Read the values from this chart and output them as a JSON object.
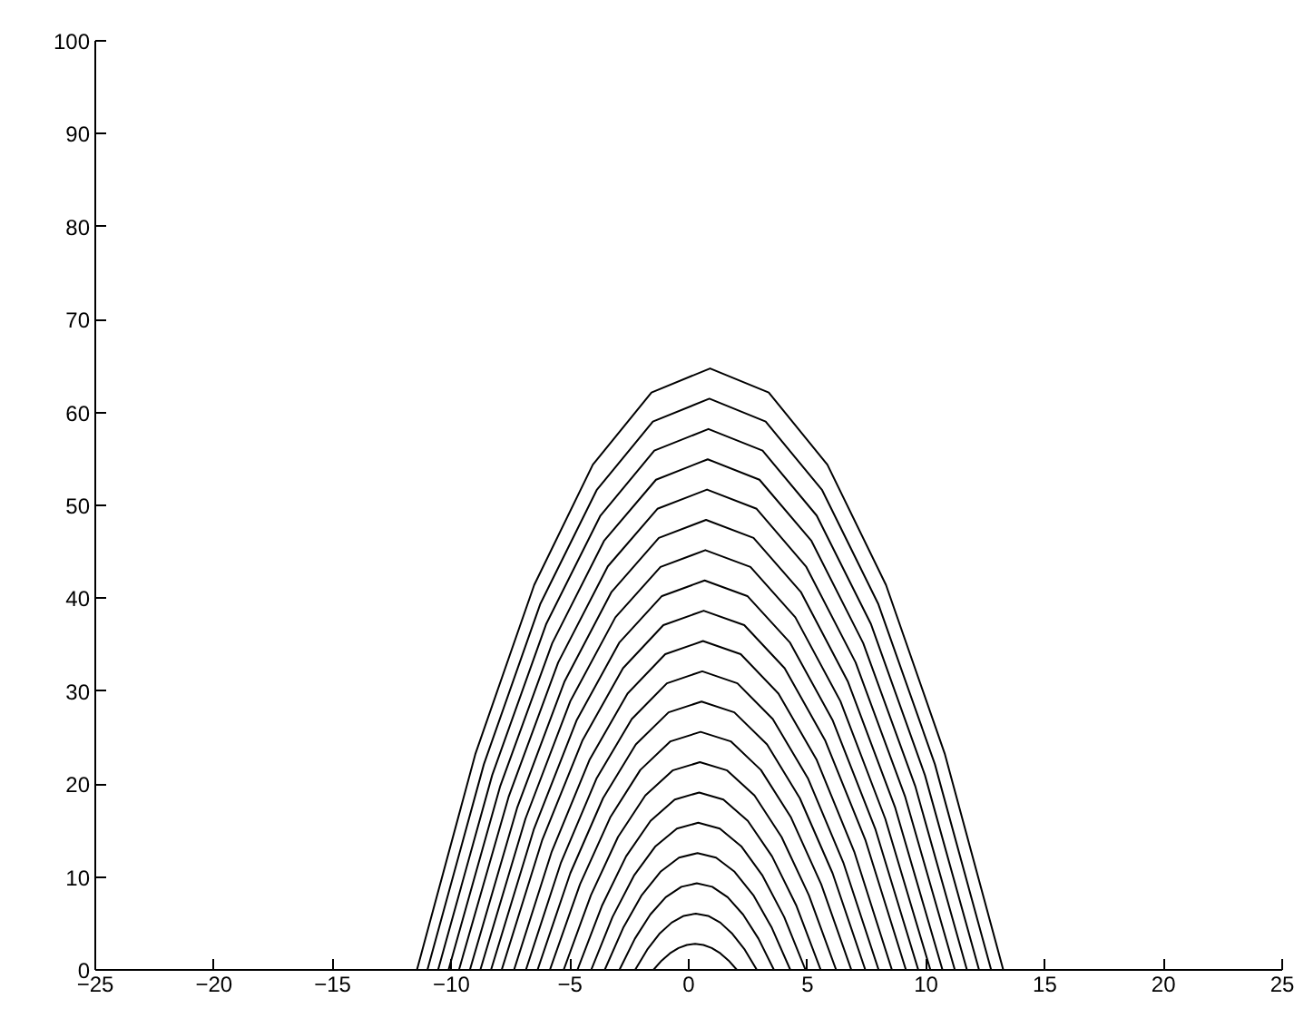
{
  "chart_data": {
    "type": "line",
    "xlim": [
      -25,
      25
    ],
    "ylim": [
      0,
      100
    ],
    "xticks": [
      -25,
      -20,
      -15,
      -10,
      -5,
      0,
      5,
      10,
      15,
      20,
      25
    ],
    "yticks": [
      0,
      10,
      20,
      30,
      40,
      50,
      60,
      70,
      80,
      90,
      100
    ],
    "grid": false,
    "marker": "none",
    "line_style": "solid",
    "series": [
      {
        "color": "#000000",
        "x": [
          -1.49,
          -1.14,
          -0.79,
          -0.43,
          -0.08,
          0.27,
          0.62,
          0.97,
          1.33,
          1.68,
          2.03
        ],
        "values": [
          0.0,
          1.01,
          1.79,
          2.35,
          2.69,
          2.8,
          2.69,
          2.35,
          1.79,
          1.01,
          0.0
        ]
      },
      {
        "color": "#000000",
        "x": [
          -2.26,
          -1.75,
          -1.24,
          -0.72,
          -0.21,
          0.3,
          0.82,
          1.33,
          1.84,
          2.36,
          2.87
        ],
        "values": [
          0.0,
          2.18,
          3.88,
          5.09,
          5.82,
          6.06,
          5.82,
          5.09,
          3.88,
          2.18,
          0.0
        ]
      },
      {
        "color": "#000000",
        "x": [
          -2.92,
          -2.27,
          -1.62,
          -0.97,
          -0.31,
          0.34,
          0.99,
          1.64,
          2.29,
          2.94,
          3.59
        ],
        "values": [
          0.0,
          3.36,
          5.96,
          7.83,
          8.95,
          9.32,
          8.95,
          7.83,
          5.96,
          3.36,
          0.0
        ]
      },
      {
        "color": "#000000",
        "x": [
          -3.54,
          -2.76,
          -1.98,
          -1.19,
          -0.41,
          0.37,
          1.15,
          1.93,
          2.72,
          3.5,
          4.28
        ],
        "values": [
          0.0,
          4.53,
          8.05,
          10.57,
          12.08,
          12.58,
          12.08,
          10.57,
          8.05,
          4.53,
          0.0
        ]
      },
      {
        "color": "#000000",
        "x": [
          -4.11,
          -3.21,
          -2.31,
          -1.4,
          -0.5,
          0.4,
          1.31,
          2.21,
          3.11,
          4.02,
          4.92
        ],
        "values": [
          0.0,
          5.7,
          10.14,
          13.31,
          15.21,
          15.84,
          15.21,
          13.31,
          10.14,
          5.7,
          0.0
        ]
      },
      {
        "color": "#000000",
        "x": [
          -4.69,
          -3.66,
          -2.64,
          -1.61,
          -0.59,
          0.44,
          1.46,
          2.49,
          3.51,
          4.54,
          5.56
        ],
        "values": [
          0.0,
          6.88,
          12.22,
          16.04,
          18.34,
          19.1,
          18.34,
          16.04,
          12.22,
          6.88,
          0.0
        ]
      },
      {
        "color": "#000000",
        "x": [
          -5.27,
          -4.12,
          -2.98,
          -1.83,
          -0.68,
          0.47,
          1.62,
          2.77,
          3.91,
          5.06,
          6.21
        ],
        "values": [
          0.0,
          8.05,
          14.31,
          18.78,
          21.47,
          22.36,
          21.47,
          18.78,
          14.31,
          8.05,
          0.0
        ]
      },
      {
        "color": "#000000",
        "x": [
          -5.85,
          -4.58,
          -3.31,
          -2.04,
          -0.77,
          0.5,
          1.77,
          3.04,
          4.31,
          5.58,
          6.85
        ],
        "values": [
          0.0,
          9.22,
          16.4,
          21.52,
          24.6,
          25.62,
          24.6,
          21.52,
          16.4,
          9.22,
          0.0
        ]
      },
      {
        "color": "#000000",
        "x": [
          -6.37,
          -4.99,
          -3.61,
          -2.23,
          -0.85,
          0.54,
          1.92,
          3.3,
          4.68,
          6.06,
          7.44
        ],
        "values": [
          0.0,
          10.4,
          18.48,
          24.26,
          27.72,
          28.88,
          27.72,
          24.26,
          18.48,
          10.4,
          0.0
        ]
      },
      {
        "color": "#000000",
        "x": [
          -6.86,
          -5.38,
          -3.89,
          -2.4,
          -0.92,
          0.57,
          2.05,
          3.54,
          5.03,
          6.51,
          8.0
        ],
        "values": [
          0.0,
          11.57,
          20.57,
          27.0,
          30.85,
          32.14,
          30.85,
          27.0,
          20.57,
          11.57,
          0.0
        ]
      },
      {
        "color": "#000000",
        "x": [
          -7.36,
          -5.77,
          -4.17,
          -2.58,
          -0.99,
          0.6,
          2.19,
          3.78,
          5.38,
          6.97,
          8.56
        ],
        "values": [
          0.0,
          12.74,
          22.66,
          29.74,
          33.98,
          35.4,
          33.98,
          29.74,
          22.66,
          12.74,
          0.0
        ]
      },
      {
        "color": "#000000",
        "x": [
          -7.88,
          -6.18,
          -4.47,
          -2.77,
          -1.07,
          0.63,
          2.34,
          4.04,
          5.74,
          7.45,
          9.15
        ],
        "values": [
          0.0,
          13.92,
          24.74,
          32.47,
          37.11,
          38.66,
          37.11,
          32.47,
          24.74,
          13.92,
          0.0
        ]
      },
      {
        "color": "#000000",
        "x": [
          -8.33,
          -6.53,
          -4.73,
          -2.93,
          -1.13,
          0.67,
          2.47,
          4.27,
          6.07,
          7.87,
          9.67
        ],
        "values": [
          0.0,
          15.09,
          26.83,
          35.21,
          40.24,
          41.92,
          40.24,
          35.21,
          26.83,
          15.09,
          0.0
        ]
      },
      {
        "color": "#000000",
        "x": [
          -8.78,
          -6.88,
          -4.99,
          -3.09,
          -1.19,
          0.7,
          2.6,
          4.49,
          6.39,
          8.28,
          10.18
        ],
        "values": [
          0.0,
          16.26,
          28.92,
          37.95,
          43.37,
          45.18,
          43.37,
          37.95,
          28.92,
          16.26,
          0.0
        ]
      },
      {
        "color": "#000000",
        "x": [
          -9.22,
          -7.23,
          -5.24,
          -3.25,
          -1.26,
          0.73,
          2.73,
          4.72,
          6.71,
          8.7,
          10.69
        ],
        "values": [
          0.0,
          17.44,
          31.0,
          40.69,
          46.5,
          48.44,
          46.5,
          40.69,
          31.0,
          17.44,
          0.0
        ]
      },
      {
        "color": "#000000",
        "x": [
          -9.68,
          -7.59,
          -5.5,
          -3.41,
          -1.32,
          0.77,
          2.86,
          4.94,
          7.03,
          9.12,
          11.21
        ],
        "values": [
          0.0,
          18.61,
          33.09,
          43.43,
          49.63,
          51.7,
          49.63,
          43.43,
          33.09,
          18.61,
          0.0
        ]
      },
      {
        "color": "#000000",
        "x": [
          -10.12,
          -7.94,
          -5.75,
          -3.57,
          -1.38,
          0.8,
          2.98,
          5.17,
          7.35,
          9.54,
          11.72
        ],
        "values": [
          0.0,
          19.79,
          35.17,
          46.17,
          52.76,
          54.96,
          52.76,
          46.17,
          35.17,
          19.79,
          0.0
        ]
      },
      {
        "color": "#000000",
        "x": [
          -10.56,
          -8.28,
          -6.0,
          -3.72,
          -1.45,
          0.83,
          3.11,
          5.39,
          7.67,
          9.95,
          12.23
        ],
        "values": [
          0.0,
          20.96,
          37.26,
          48.9,
          55.89,
          58.22,
          55.89,
          48.9,
          37.26,
          20.96,
          0.0
        ]
      },
      {
        "color": "#000000",
        "x": [
          -11.01,
          -8.63,
          -6.26,
          -3.88,
          -1.51,
          0.87,
          3.24,
          5.62,
          7.99,
          10.37,
          12.74
        ],
        "values": [
          0.0,
          22.13,
          39.35,
          51.64,
          59.02,
          61.48,
          59.02,
          51.64,
          39.35,
          22.13,
          0.0
        ]
      },
      {
        "color": "#000000",
        "x": [
          -11.45,
          -8.98,
          -6.51,
          -4.04,
          -1.57,
          0.9,
          3.37,
          5.84,
          8.31,
          10.78,
          13.25
        ],
        "values": [
          0.0,
          23.31,
          41.43,
          54.38,
          62.15,
          64.74,
          62.15,
          54.38,
          41.43,
          23.31,
          0.0
        ]
      }
    ]
  }
}
